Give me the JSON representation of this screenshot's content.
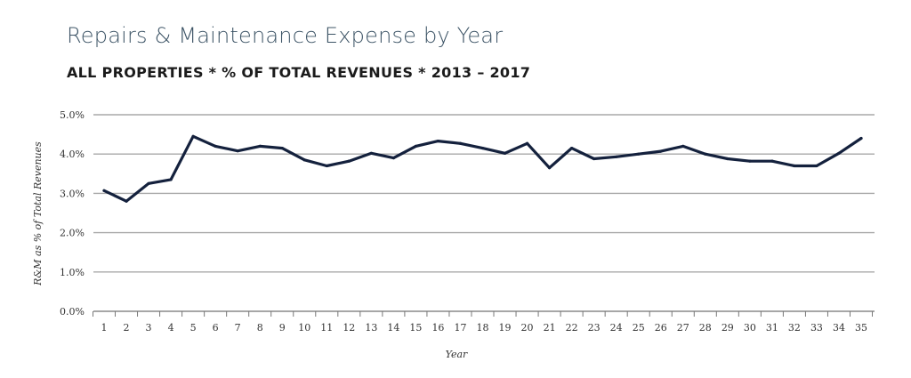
{
  "chart_data": {
    "type": "line",
    "title": "Repairs & Maintenance Expense by Year",
    "subtitle": "ALL PROPERTIES * % OF TOTAL REVENUES * 2013 – 2017",
    "xlabel": "Year",
    "ylabel": "R&M as % of Total Revenues",
    "ylim": [
      0,
      5
    ],
    "yticks": [
      "0.0%",
      "1.0%",
      "2.0%",
      "3.0%",
      "4.0%",
      "5.0%"
    ],
    "grid": true,
    "x": [
      1,
      2,
      3,
      4,
      5,
      6,
      7,
      8,
      9,
      10,
      11,
      12,
      13,
      14,
      15,
      16,
      17,
      18,
      19,
      20,
      21,
      22,
      23,
      24,
      25,
      26,
      27,
      28,
      29,
      30,
      31,
      32,
      33,
      34,
      35
    ],
    "xtick_labels": [
      "1",
      "2",
      "3",
      "4",
      "5",
      "6",
      "7",
      "8",
      "9",
      "10",
      "11",
      "12",
      "13",
      "14",
      "15",
      "16",
      "17",
      "18",
      "19",
      "20",
      "21",
      "22",
      "23",
      "24",
      "25",
      "26",
      "27",
      "28",
      "29",
      "30",
      "31",
      "32",
      "33",
      "34",
      "35"
    ],
    "series": [
      {
        "name": "R&M as % of Total Revenues",
        "color": "#14213d",
        "values": [
          3.07,
          2.8,
          3.25,
          3.35,
          4.45,
          4.2,
          4.08,
          4.2,
          4.15,
          3.85,
          3.7,
          3.82,
          4.02,
          3.9,
          4.2,
          4.33,
          4.27,
          4.15,
          4.02,
          4.27,
          3.65,
          4.15,
          3.88,
          3.93,
          4.0,
          4.07,
          4.2,
          4.0,
          3.88,
          3.82,
          3.82,
          3.7,
          3.7,
          4.02,
          4.4
        ]
      }
    ]
  }
}
